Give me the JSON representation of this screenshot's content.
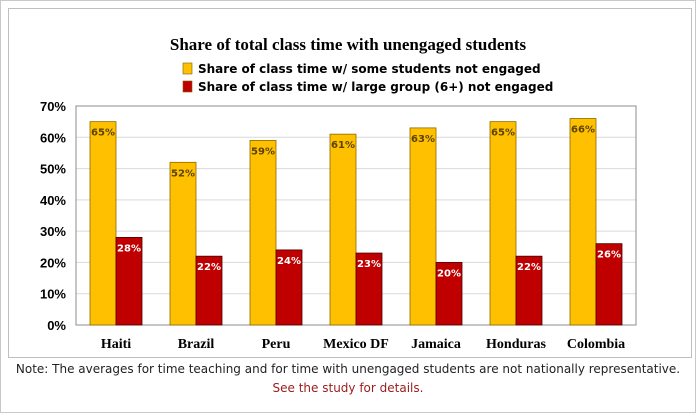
{
  "chart_data": {
    "type": "bar",
    "title": "Share of total class time with unengaged students",
    "categories": [
      "Haiti",
      "Brazil",
      "Peru",
      "Mexico DF",
      "Jamaica",
      "Honduras",
      "Colombia"
    ],
    "series": [
      {
        "name": "Share of class time w/ some students not engaged",
        "values": [
          65,
          52,
          59,
          61,
          63,
          65,
          66
        ],
        "labels": [
          "65%",
          "52%",
          "59%",
          "61%",
          "63%",
          "65%",
          "66%"
        ],
        "color": "#FFC000"
      },
      {
        "name": "Share of class time w/ large group (6+) not engaged",
        "values": [
          28,
          22,
          24,
          23,
          20,
          22,
          26
        ],
        "labels": [
          "28%",
          "22%",
          "24%",
          "23%",
          "20%",
          "22%",
          "26%"
        ],
        "color": "#C00000"
      }
    ],
    "ylim": [
      0,
      70
    ],
    "yticks": [
      "0%",
      "10%",
      "20%",
      "30%",
      "40%",
      "50%",
      "60%",
      "70%"
    ],
    "xlabel": "",
    "ylabel": "",
    "legend": "top",
    "grid": true
  },
  "note": {
    "line1": "Note: The averages for time teaching and for time with unengaged students are not nationally representative.",
    "line2": "See the study for details."
  }
}
